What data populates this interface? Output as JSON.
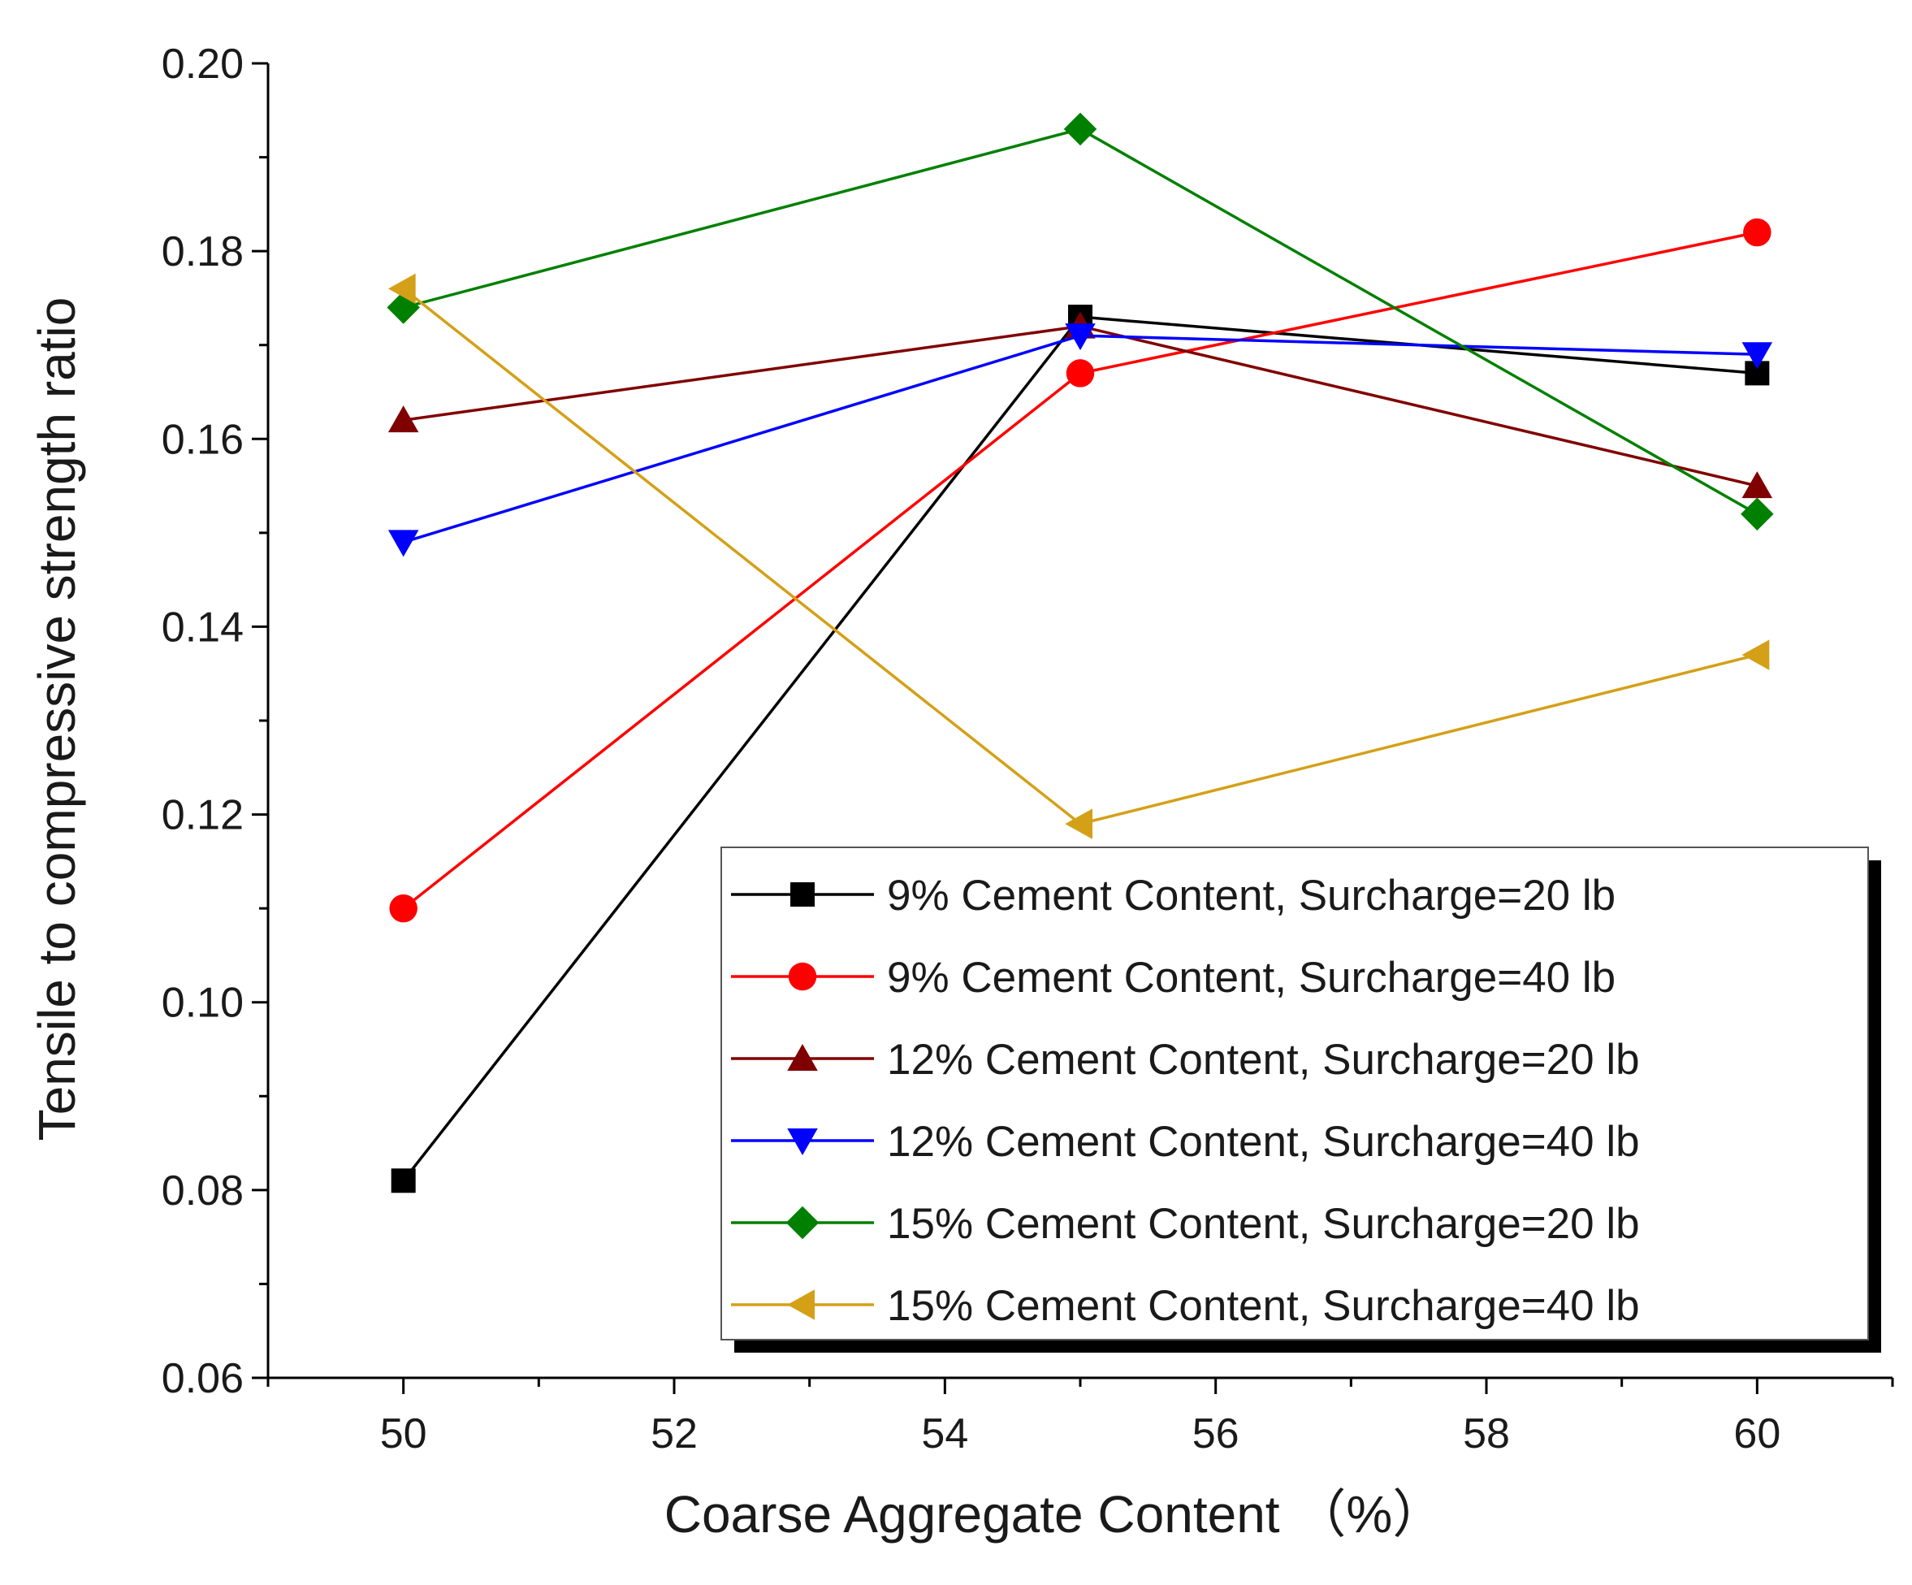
{
  "chart_data": {
    "type": "line",
    "title": "",
    "xlabel": "Coarse Aggregate Content （%）",
    "ylabel": "Tensile to compressive strength ratio",
    "xlim": [
      49,
      61
    ],
    "ylim": [
      0.06,
      0.2
    ],
    "x_ticks": [
      50,
      52,
      54,
      56,
      58,
      60
    ],
    "x_tick_labels": [
      "50",
      "52",
      "54",
      "56",
      "58",
      "60"
    ],
    "y_ticks": [
      0.06,
      0.08,
      0.1,
      0.12,
      0.14,
      0.16,
      0.18,
      0.2
    ],
    "y_tick_labels": [
      "0.06",
      "0.08",
      "0.10",
      "0.12",
      "0.14",
      "0.16",
      "0.18",
      "0.20"
    ],
    "grid": false,
    "legend_position": "bottom-right",
    "x": [
      50,
      55,
      60
    ],
    "series": [
      {
        "name": "9% Cement Content, Surcharge=20 lb",
        "values": [
          0.081,
          0.173,
          0.167
        ],
        "color": "#000000",
        "marker": "square"
      },
      {
        "name": "9% Cement Content, Surcharge=40 lb",
        "values": [
          0.11,
          0.167,
          0.182
        ],
        "color": "#ff0000",
        "marker": "circle"
      },
      {
        "name": "12% Cement Content, Surcharge=20 lb",
        "values": [
          0.162,
          0.172,
          0.155
        ],
        "color": "#800000",
        "marker": "triangle-up"
      },
      {
        "name": "12% Cement Content, Surcharge=40 lb",
        "values": [
          0.149,
          0.171,
          0.169
        ],
        "color": "#0000ff",
        "marker": "triangle-down"
      },
      {
        "name": "15% Cement Content, Surcharge=20 lb",
        "values": [
          0.174,
          0.193,
          0.152
        ],
        "color": "#008000",
        "marker": "diamond"
      },
      {
        "name": "15% Cement Content, Surcharge=40 lb",
        "values": [
          0.176,
          0.119,
          0.137
        ],
        "color": "#d4a017",
        "marker": "triangle-left"
      }
    ]
  }
}
